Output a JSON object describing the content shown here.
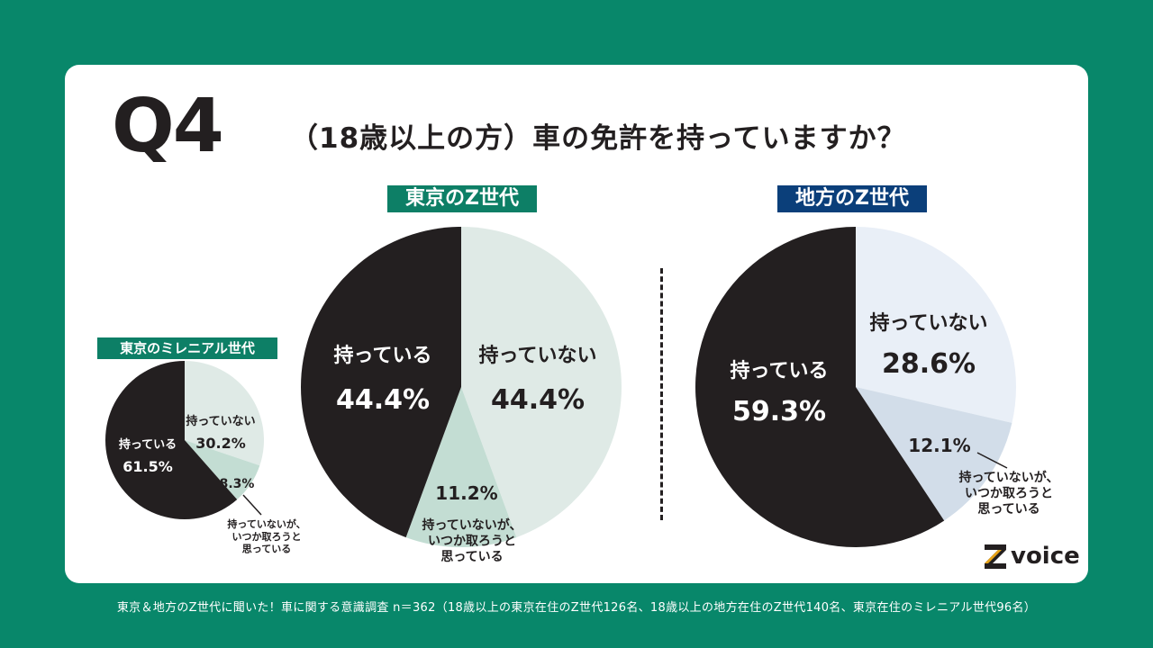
{
  "header": {
    "q_label": "Q4",
    "question": "（18歳以上の方）車の免許を持っていますか？"
  },
  "tags": {
    "tokyo_z": "東京のZ世代",
    "local_z": "地方のZ世代",
    "tokyo_millennial": "東京のミレニアル世代"
  },
  "brand": {
    "name": "voice",
    "mark": "Z"
  },
  "footer": "東京＆地方のZ世代に聞いた！車に関する意識調査 n＝362（18歳以上の東京在住のZ世代126名、18歳以上の地方在住のZ世代140名、東京在住のミレニアル世代96名）",
  "colors": {
    "background": "#08876a",
    "have": "#231f20",
    "dont_have_tokyo": "#dfeae6",
    "planning_tokyo": "#c3ddd3",
    "dont_have_local": "#e9eff7",
    "planning_local": "#d2dde9"
  },
  "chart_data": [
    {
      "type": "pie",
      "title": "東京のZ世代",
      "slices": [
        {
          "label": "持っていない",
          "value": 44.4,
          "value_label": "44.4%",
          "color": "#dfeae6"
        },
        {
          "label": "持っていないが、いつか取ろうと思っている",
          "value": 11.2,
          "value_label": "11.2%",
          "color": "#c3ddd3"
        },
        {
          "label": "持っている",
          "value": 44.4,
          "value_label": "44.4%",
          "color": "#231f20"
        }
      ]
    },
    {
      "type": "pie",
      "title": "地方のZ世代",
      "slices": [
        {
          "label": "持っていない",
          "value": 28.6,
          "value_label": "28.6%",
          "color": "#e9eff7"
        },
        {
          "label": "持っていないが、いつか取ろうと思っている",
          "value": 12.1,
          "value_label": "12.1%",
          "color": "#d2dde9"
        },
        {
          "label": "持っている",
          "value": 59.3,
          "value_label": "59.3%",
          "color": "#231f20"
        }
      ]
    },
    {
      "type": "pie",
      "title": "東京のミレニアル世代",
      "slices": [
        {
          "label": "持っていない",
          "value": 30.2,
          "value_label": "30.2%",
          "color": "#dfeae6"
        },
        {
          "label": "持っていないが、いつか取ろうと思っている",
          "value": 8.3,
          "value_label": "8.3%",
          "color": "#c3ddd3"
        },
        {
          "label": "持っている",
          "value": 61.5,
          "value_label": "61.5%",
          "color": "#231f20"
        }
      ]
    }
  ]
}
